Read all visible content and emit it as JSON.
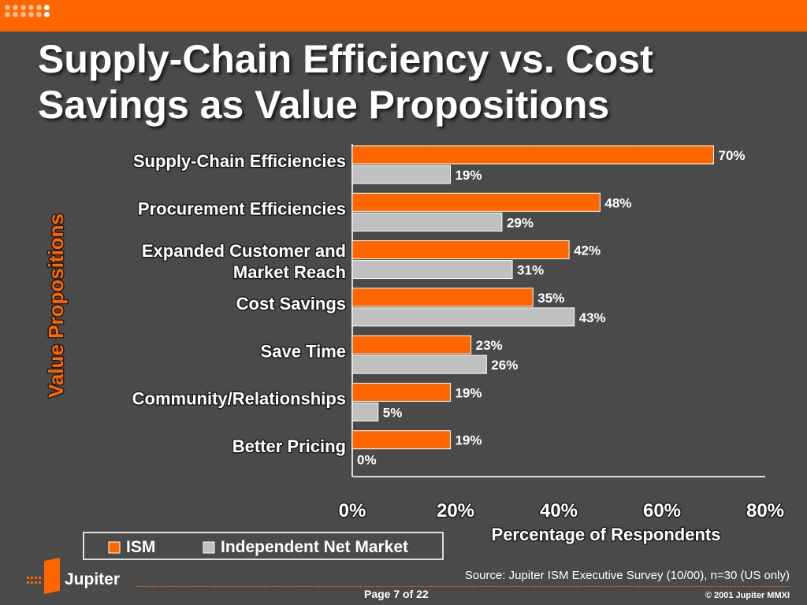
{
  "slide": {
    "title": "Supply-Chain Efficiency vs. Cost Savings as Value Propositions",
    "brand": "Jupiter",
    "source": "Source: Jupiter ISM Executive Survey (10/00), n=30 (US only)",
    "page": "Page 7 of 22",
    "copyright": "© 2001 Jupiter MMXI"
  },
  "colors": {
    "background": "#4a4a4a",
    "accent": "#ff6600",
    "series2": "#c0c0c0"
  },
  "chart_data": {
    "type": "bar",
    "orientation": "horizontal",
    "categories": [
      [
        "Supply-Chain Efficiencies"
      ],
      [
        "Procurement Efficiencies"
      ],
      [
        "Expanded Customer and",
        "Market Reach"
      ],
      [
        "Cost Savings"
      ],
      [
        "Save Time"
      ],
      [
        "Community/Relationships"
      ],
      [
        "Better Pricing"
      ]
    ],
    "series": [
      {
        "name": "ISM",
        "color": "#ff6600",
        "values": [
          70,
          48,
          42,
          35,
          23,
          19,
          19
        ]
      },
      {
        "name": "Independent Net Market",
        "color": "#c0c0c0",
        "values": [
          19,
          29,
          31,
          43,
          26,
          5,
          0
        ]
      }
    ],
    "xlim": [
      0,
      80
    ],
    "xticks": [
      "0%",
      "20%",
      "40%",
      "60%",
      "80%"
    ],
    "xlabel": "Percentage of Respondents",
    "ylabel": "Value Propositions",
    "value_suffix": "%",
    "legend_position": "bottom-left",
    "grid": false
  }
}
